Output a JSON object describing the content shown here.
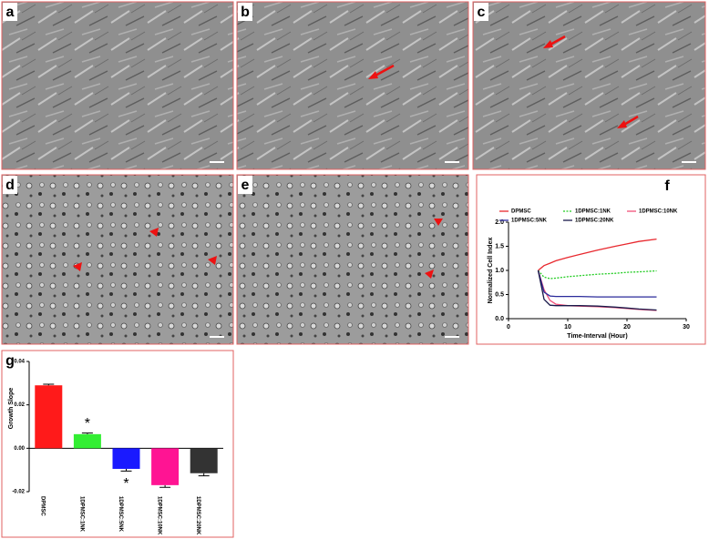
{
  "panel_labels": [
    "a",
    "b",
    "c",
    "d",
    "e",
    "f",
    "g"
  ],
  "chart_data": [
    {
      "type": "line",
      "xlabel": "Time-Interval (Hour)",
      "ylabel": "Normalized Cell Index",
      "x": [
        5,
        6,
        7,
        8,
        10,
        12,
        15,
        18,
        20,
        22,
        25
      ],
      "series": [
        {
          "name": "DPMSC",
          "color": "#e8282e",
          "values": [
            1.0,
            1.1,
            1.15,
            1.2,
            1.27,
            1.33,
            1.42,
            1.5,
            1.55,
            1.6,
            1.65
          ]
        },
        {
          "name": "1DPMSC:1NK",
          "color": "#22cc22",
          "linestyle": "dashed",
          "values": [
            1.0,
            0.86,
            0.83,
            0.84,
            0.87,
            0.89,
            0.92,
            0.94,
            0.96,
            0.97,
            0.99
          ]
        },
        {
          "name": "1DPMSC:10NK",
          "color": "#f0507a",
          "values": [
            1.0,
            0.6,
            0.38,
            0.3,
            0.27,
            0.26,
            0.25,
            0.23,
            0.21,
            0.19,
            0.17
          ]
        },
        {
          "name": "1DPMSC:5NK",
          "color": "#2a2a9a",
          "values": [
            1.0,
            0.55,
            0.47,
            0.46,
            0.46,
            0.46,
            0.45,
            0.45,
            0.45,
            0.45,
            0.45
          ]
        },
        {
          "name": "1DPMSC:20NK",
          "color": "#1a1a4a",
          "values": [
            1.0,
            0.4,
            0.28,
            0.27,
            0.27,
            0.27,
            0.26,
            0.24,
            0.22,
            0.2,
            0.18
          ]
        }
      ],
      "xlim": [
        0,
        30
      ],
      "xticks": [
        0,
        10,
        20,
        30
      ],
      "ylim": [
        0,
        2
      ],
      "yticks": [
        {
          "value": 0,
          "label": "0.0"
        },
        0.5,
        {
          "value": 1,
          "label": "1.0"
        },
        1.5,
        {
          "value": 2,
          "label": "2.0"
        }
      ]
    },
    {
      "type": "bar",
      "ylabel": "Growth Slope",
      "categories": [
        "DPMSC",
        "1DPMSC:1NK",
        "1DPMSC:5NK",
        "1DPMSC:10NK",
        "1DPMSC:20NK"
      ],
      "values": [
        0.029,
        0.0065,
        -0.0095,
        -0.017,
        -0.0115
      ],
      "errors": [
        0.0005,
        0.0005,
        0.001,
        0.001,
        0.0012
      ],
      "colors": [
        "#ff1a1a",
        "#33ee33",
        "#1a1aff",
        "#ff1493",
        "#333333"
      ],
      "annotations": [
        "*",
        "*"
      ],
      "ylim": [
        -0.02,
        0.04
      ],
      "yticks": [
        {
          "value": -0.02,
          "label": "-0.02"
        },
        {
          "value": 0,
          "label": "0.00"
        },
        {
          "value": 0.02,
          "label": "0.02"
        },
        {
          "value": 0.04,
          "label": "0.04"
        }
      ]
    }
  ]
}
